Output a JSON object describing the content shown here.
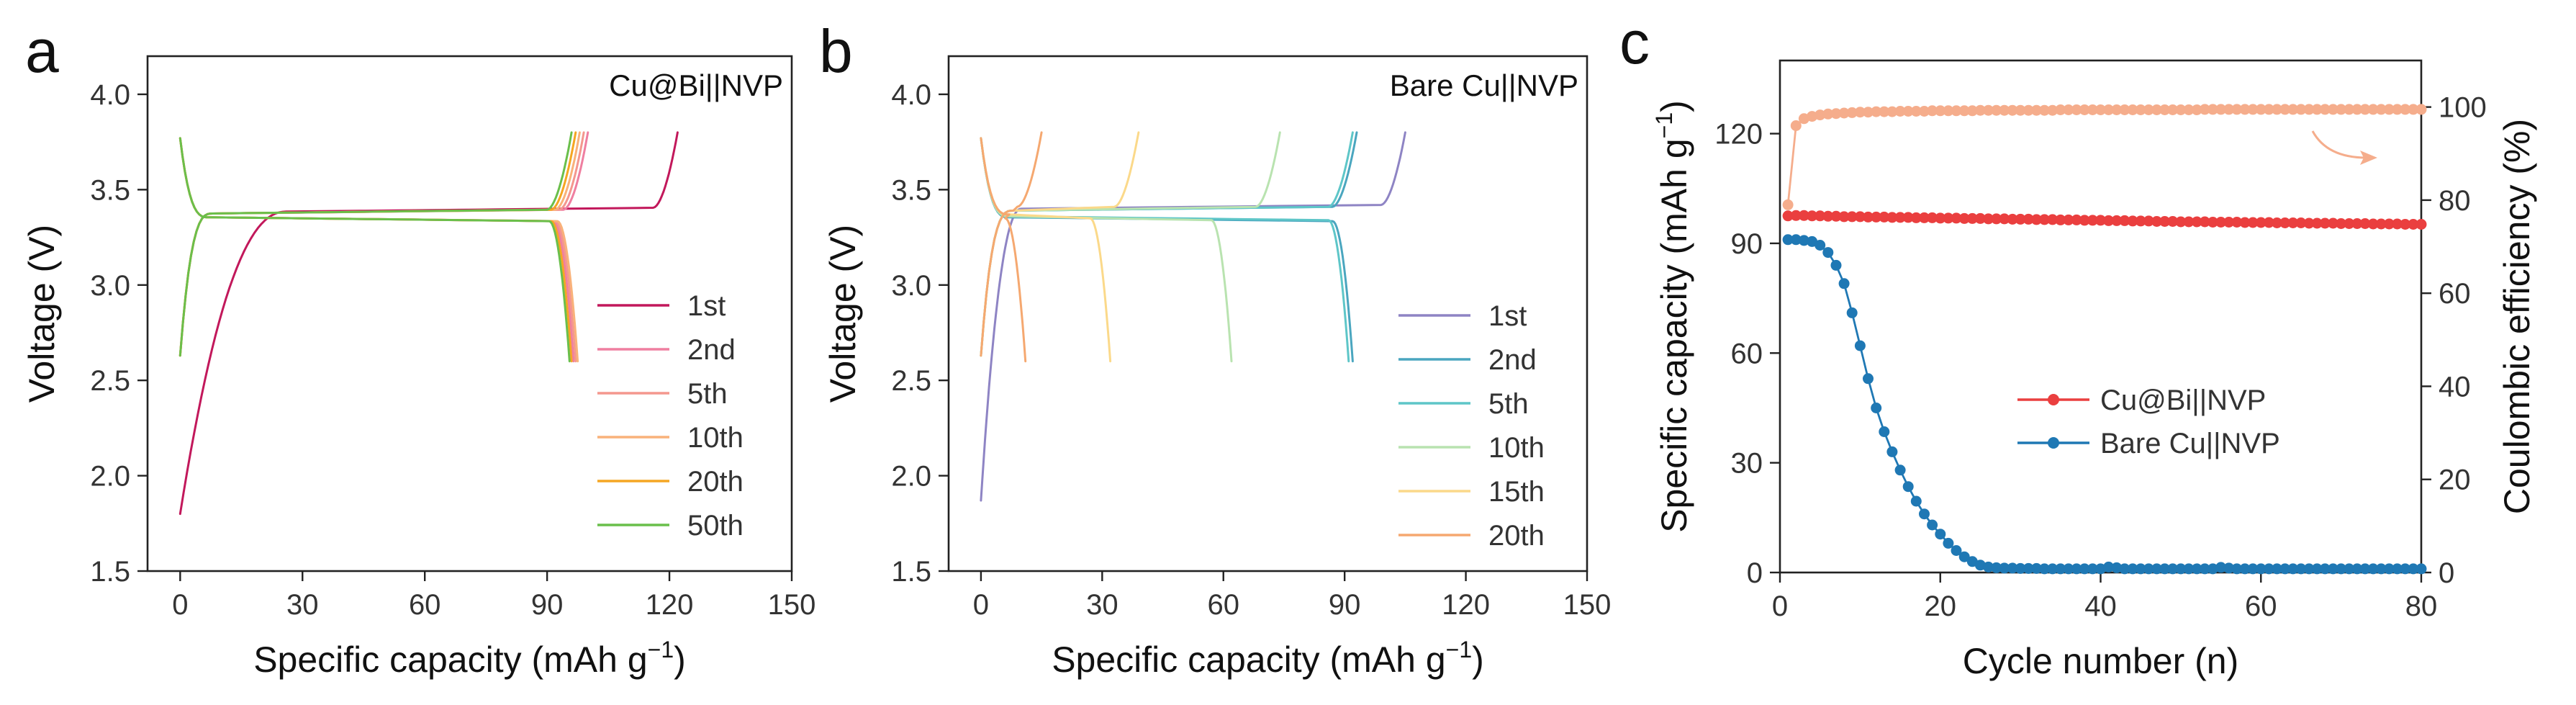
{
  "chart_data": [
    {
      "id": "a",
      "panel_letter": "a",
      "type": "line",
      "title": "Cu@Bi||NVP",
      "xlabel": "Specific capacity (mAh g",
      "xlabel_sup": "−1",
      "xlabel_end": ")",
      "ylabel": "Voltage (V)",
      "xlim": [
        -8,
        150
      ],
      "ylim": [
        1.5,
        4.2
      ],
      "xticks": [
        0,
        30,
        60,
        90,
        120,
        150
      ],
      "xtick_labels": [
        "0",
        "30",
        "60",
        "90",
        "120",
        "150"
      ],
      "yticks": [
        1.5,
        2.0,
        2.5,
        3.0,
        3.5,
        4.0
      ],
      "ytick_labels": [
        "1.5",
        "2.0",
        "2.5",
        "3.0",
        "3.5",
        "4.0"
      ],
      "legend_position": "lower-right",
      "series": [
        {
          "name": "1st",
          "color": "#c2185b",
          "charge": {
            "capacity": 122,
            "plateau": 3.385
          },
          "discharge": null,
          "first_cycle_start": 1.8
        },
        {
          "name": "2nd",
          "color": "#ef7fa0",
          "charge": {
            "capacity": 100,
            "plateau": 3.375
          },
          "discharge": {
            "capacity": 96.5,
            "plateau": 3.355
          }
        },
        {
          "name": "5th",
          "color": "#f4978e",
          "charge": {
            "capacity": 99,
            "plateau": 3.375
          },
          "discharge": {
            "capacity": 97,
            "plateau": 3.355
          }
        },
        {
          "name": "10th",
          "color": "#f9b27a",
          "charge": {
            "capacity": 98,
            "plateau": 3.375
          },
          "discharge": {
            "capacity": 97.5,
            "plateau": 3.355
          }
        },
        {
          "name": "20th",
          "color": "#f5a623",
          "charge": {
            "capacity": 97,
            "plateau": 3.375
          },
          "discharge": {
            "capacity": 96,
            "plateau": 3.355
          }
        },
        {
          "name": "50th",
          "color": "#6abf4b",
          "charge": {
            "capacity": 96,
            "plateau": 3.375
          },
          "discharge": {
            "capacity": 95.5,
            "plateau": 3.355
          }
        }
      ]
    },
    {
      "id": "b",
      "panel_letter": "b",
      "type": "line",
      "title": "Bare Cu||NVP",
      "xlabel": "Specific capacity (mAh g",
      "xlabel_sup": "−1",
      "xlabel_end": ")",
      "ylabel": "Voltage (V)",
      "xlim": [
        -8,
        150
      ],
      "ylim": [
        1.5,
        4.2
      ],
      "xticks": [
        0,
        30,
        60,
        90,
        120,
        150
      ],
      "xtick_labels": [
        "0",
        "30",
        "60",
        "90",
        "120",
        "150"
      ],
      "yticks": [
        1.5,
        2.0,
        2.5,
        3.0,
        3.5,
        4.0
      ],
      "ytick_labels": [
        "1.5",
        "2.0",
        "2.5",
        "3.0",
        "3.5",
        "4.0"
      ],
      "legend_position": "lower-right",
      "series": [
        {
          "name": "1st",
          "color": "#8e84c4",
          "charge": {
            "capacity": 105,
            "plateau": 3.4
          },
          "discharge": null,
          "first_cycle_start": 1.87
        },
        {
          "name": "2nd",
          "color": "#4aa6bf",
          "charge": {
            "capacity": 93,
            "plateau": 3.39
          },
          "discharge": {
            "capacity": 92,
            "plateau": 3.355
          }
        },
        {
          "name": "5th",
          "color": "#5ec6c8",
          "charge": {
            "capacity": 92,
            "plateau": 3.39
          },
          "discharge": {
            "capacity": 91,
            "plateau": 3.36
          }
        },
        {
          "name": "10th",
          "color": "#b9e3b0",
          "charge": {
            "capacity": 74,
            "plateau": 3.39
          },
          "discharge": {
            "capacity": 62,
            "plateau": 3.36
          }
        },
        {
          "name": "15th",
          "color": "#fbd98a",
          "charge": {
            "capacity": 39,
            "plateau": 3.39
          },
          "discharge": {
            "capacity": 32,
            "plateau": 3.37
          }
        },
        {
          "name": "20th",
          "color": "#f5a870",
          "charge": {
            "capacity": 15,
            "plateau": 3.39
          },
          "discharge": {
            "capacity": 11,
            "plateau": 3.37
          }
        }
      ]
    },
    {
      "id": "c",
      "panel_letter": "c",
      "type": "scatter",
      "title": "",
      "xlabel": "Cycle number (n)",
      "ylabel": "Specific capacity (mAh g",
      "ylabel_sup": "−1",
      "ylabel_end": ")",
      "y2label": "Coulombic efficiency (%)",
      "xlim": [
        0,
        80
      ],
      "ylim": [
        0,
        140
      ],
      "y2lim": [
        0,
        110
      ],
      "xticks": [
        0,
        20,
        40,
        60,
        80
      ],
      "xtick_labels": [
        "0",
        "20",
        "40",
        "60",
        "80"
      ],
      "yticks": [
        0,
        30,
        60,
        90,
        120
      ],
      "ytick_labels": [
        "0",
        "30",
        "60",
        "90",
        "120"
      ],
      "y2ticks": [
        0,
        20,
        40,
        60,
        80,
        100
      ],
      "y2tick_labels": [
        "0",
        "20",
        "40",
        "60",
        "80",
        "100"
      ],
      "legend_position": "center-right",
      "series": [
        {
          "name": "Cu@Bi||NVP",
          "axis": "left",
          "color": "#ea3f3f",
          "x": [
            1,
            2,
            3,
            4,
            5,
            6,
            7,
            8,
            9,
            10,
            11,
            12,
            13,
            14,
            15,
            16,
            17,
            18,
            19,
            20,
            21,
            22,
            23,
            24,
            25,
            26,
            27,
            28,
            29,
            30,
            31,
            32,
            33,
            34,
            35,
            36,
            37,
            38,
            39,
            40,
            41,
            42,
            43,
            44,
            45,
            46,
            47,
            48,
            49,
            50,
            51,
            52,
            53,
            54,
            55,
            56,
            57,
            58,
            59,
            60,
            61,
            62,
            63,
            64,
            65,
            66,
            67,
            68,
            69,
            70,
            71,
            72,
            73,
            74,
            75,
            76,
            77,
            78,
            79,
            80
          ],
          "y": [
            97.5,
            97.6,
            97.6,
            97.5,
            97.5,
            97.4,
            97.4,
            97.3,
            97.3,
            97.3,
            97.2,
            97.2,
            97.2,
            97.1,
            97.1,
            97.1,
            97.0,
            97.0,
            97.0,
            96.9,
            96.9,
            96.9,
            96.8,
            96.8,
            96.8,
            96.7,
            96.7,
            96.7,
            96.6,
            96.6,
            96.6,
            96.5,
            96.5,
            96.5,
            96.4,
            96.4,
            96.4,
            96.3,
            96.3,
            96.3,
            96.2,
            96.2,
            96.2,
            96.1,
            96.1,
            96.1,
            96.0,
            96.0,
            96.0,
            95.9,
            95.9,
            95.9,
            95.9,
            95.8,
            95.8,
            95.8,
            95.8,
            95.7,
            95.7,
            95.7,
            95.7,
            95.6,
            95.6,
            95.6,
            95.6,
            95.5,
            95.5,
            95.5,
            95.5,
            95.4,
            95.4,
            95.4,
            95.4,
            95.3,
            95.3,
            95.3,
            95.3,
            95.2,
            95.2,
            95.2
          ]
        },
        {
          "name": "Bare Cu||NVP",
          "axis": "left",
          "color": "#1f78b4",
          "x": [
            1,
            2,
            3,
            4,
            5,
            6,
            7,
            8,
            9,
            10,
            11,
            12,
            13,
            14,
            15,
            16,
            17,
            18,
            19,
            20,
            21,
            22,
            23,
            24,
            25,
            26,
            27,
            28,
            29,
            30,
            31,
            32,
            33,
            34,
            35,
            36,
            37,
            38,
            39,
            40,
            41,
            42,
            43,
            44,
            45,
            46,
            47,
            48,
            49,
            50,
            51,
            52,
            53,
            54,
            55,
            56,
            57,
            58,
            59,
            60,
            61,
            62,
            63,
            64,
            65,
            66,
            67,
            68,
            69,
            70,
            71,
            72,
            73,
            74,
            75,
            76,
            77,
            78,
            79,
            80
          ],
          "y": [
            91,
            91,
            90.8,
            90.5,
            89.5,
            87.5,
            84,
            79,
            71,
            62,
            53,
            45,
            38.5,
            33,
            28,
            23.5,
            19.5,
            16,
            13,
            10.5,
            8,
            6,
            4.3,
            3,
            2,
            1.5,
            1.3,
            1.2,
            1.2,
            1.1,
            1.1,
            1.1,
            1.0,
            1.0,
            1.0,
            1.0,
            1.0,
            1.0,
            1.0,
            1.0,
            1.5,
            1.3,
            1.0,
            1.0,
            1.0,
            1.0,
            1.0,
            1.0,
            1.0,
            1.0,
            1.0,
            1.0,
            1.0,
            1.0,
            1.4,
            1.2,
            1.0,
            1.0,
            1.0,
            1.0,
            1.0,
            1.0,
            1.0,
            1.0,
            1.0,
            1.0,
            1.0,
            1.0,
            1.0,
            1.0,
            1.0,
            1.0,
            1.0,
            1.0,
            1.0,
            1.0,
            1.0,
            1.0,
            1.0,
            1.0
          ]
        },
        {
          "name": "Cu@Bi||NVP CE",
          "axis": "right",
          "color": "#f5ad8c",
          "x": [
            1,
            2,
            3,
            4,
            5,
            6,
            7,
            8,
            9,
            10,
            11,
            12,
            13,
            14,
            15,
            16,
            17,
            18,
            19,
            20,
            21,
            22,
            23,
            24,
            25,
            26,
            27,
            28,
            29,
            30,
            31,
            32,
            33,
            34,
            35,
            36,
            37,
            38,
            39,
            40,
            41,
            42,
            43,
            44,
            45,
            46,
            47,
            48,
            49,
            50,
            51,
            52,
            53,
            54,
            55,
            56,
            57,
            58,
            59,
            60,
            61,
            62,
            63,
            64,
            65,
            66,
            67,
            68,
            69,
            70,
            71,
            72,
            73,
            74,
            75,
            76,
            77,
            78,
            79,
            80
          ],
          "y": [
            79,
            96,
            97.5,
            98,
            98.3,
            98.5,
            98.6,
            98.7,
            98.8,
            98.9,
            98.9,
            99,
            99,
            99,
            99.1,
            99.1,
            99.1,
            99.1,
            99.2,
            99.2,
            99.2,
            99.2,
            99.2,
            99.2,
            99.3,
            99.3,
            99.3,
            99.3,
            99.3,
            99.3,
            99.3,
            99.3,
            99.3,
            99.3,
            99.4,
            99.4,
            99.4,
            99.4,
            99.4,
            99.4,
            99.4,
            99.4,
            99.4,
            99.4,
            99.4,
            99.4,
            99.4,
            99.4,
            99.4,
            99.4,
            99.4,
            99.4,
            99.5,
            99.5,
            99.5,
            99.5,
            99.5,
            99.5,
            99.5,
            99.5,
            99.5,
            99.5,
            99.5,
            99.5,
            99.5,
            99.5,
            99.5,
            99.5,
            99.5,
            99.5,
            99.5,
            99.5,
            99.5,
            99.5,
            99.5,
            99.5,
            99.5,
            99.5,
            99.5,
            99.5
          ]
        }
      ],
      "legend": [
        {
          "name": "Cu@Bi||NVP",
          "color": "#ea3f3f"
        },
        {
          "name": "Bare Cu||NVP",
          "color": "#1f78b4"
        }
      ]
    }
  ]
}
